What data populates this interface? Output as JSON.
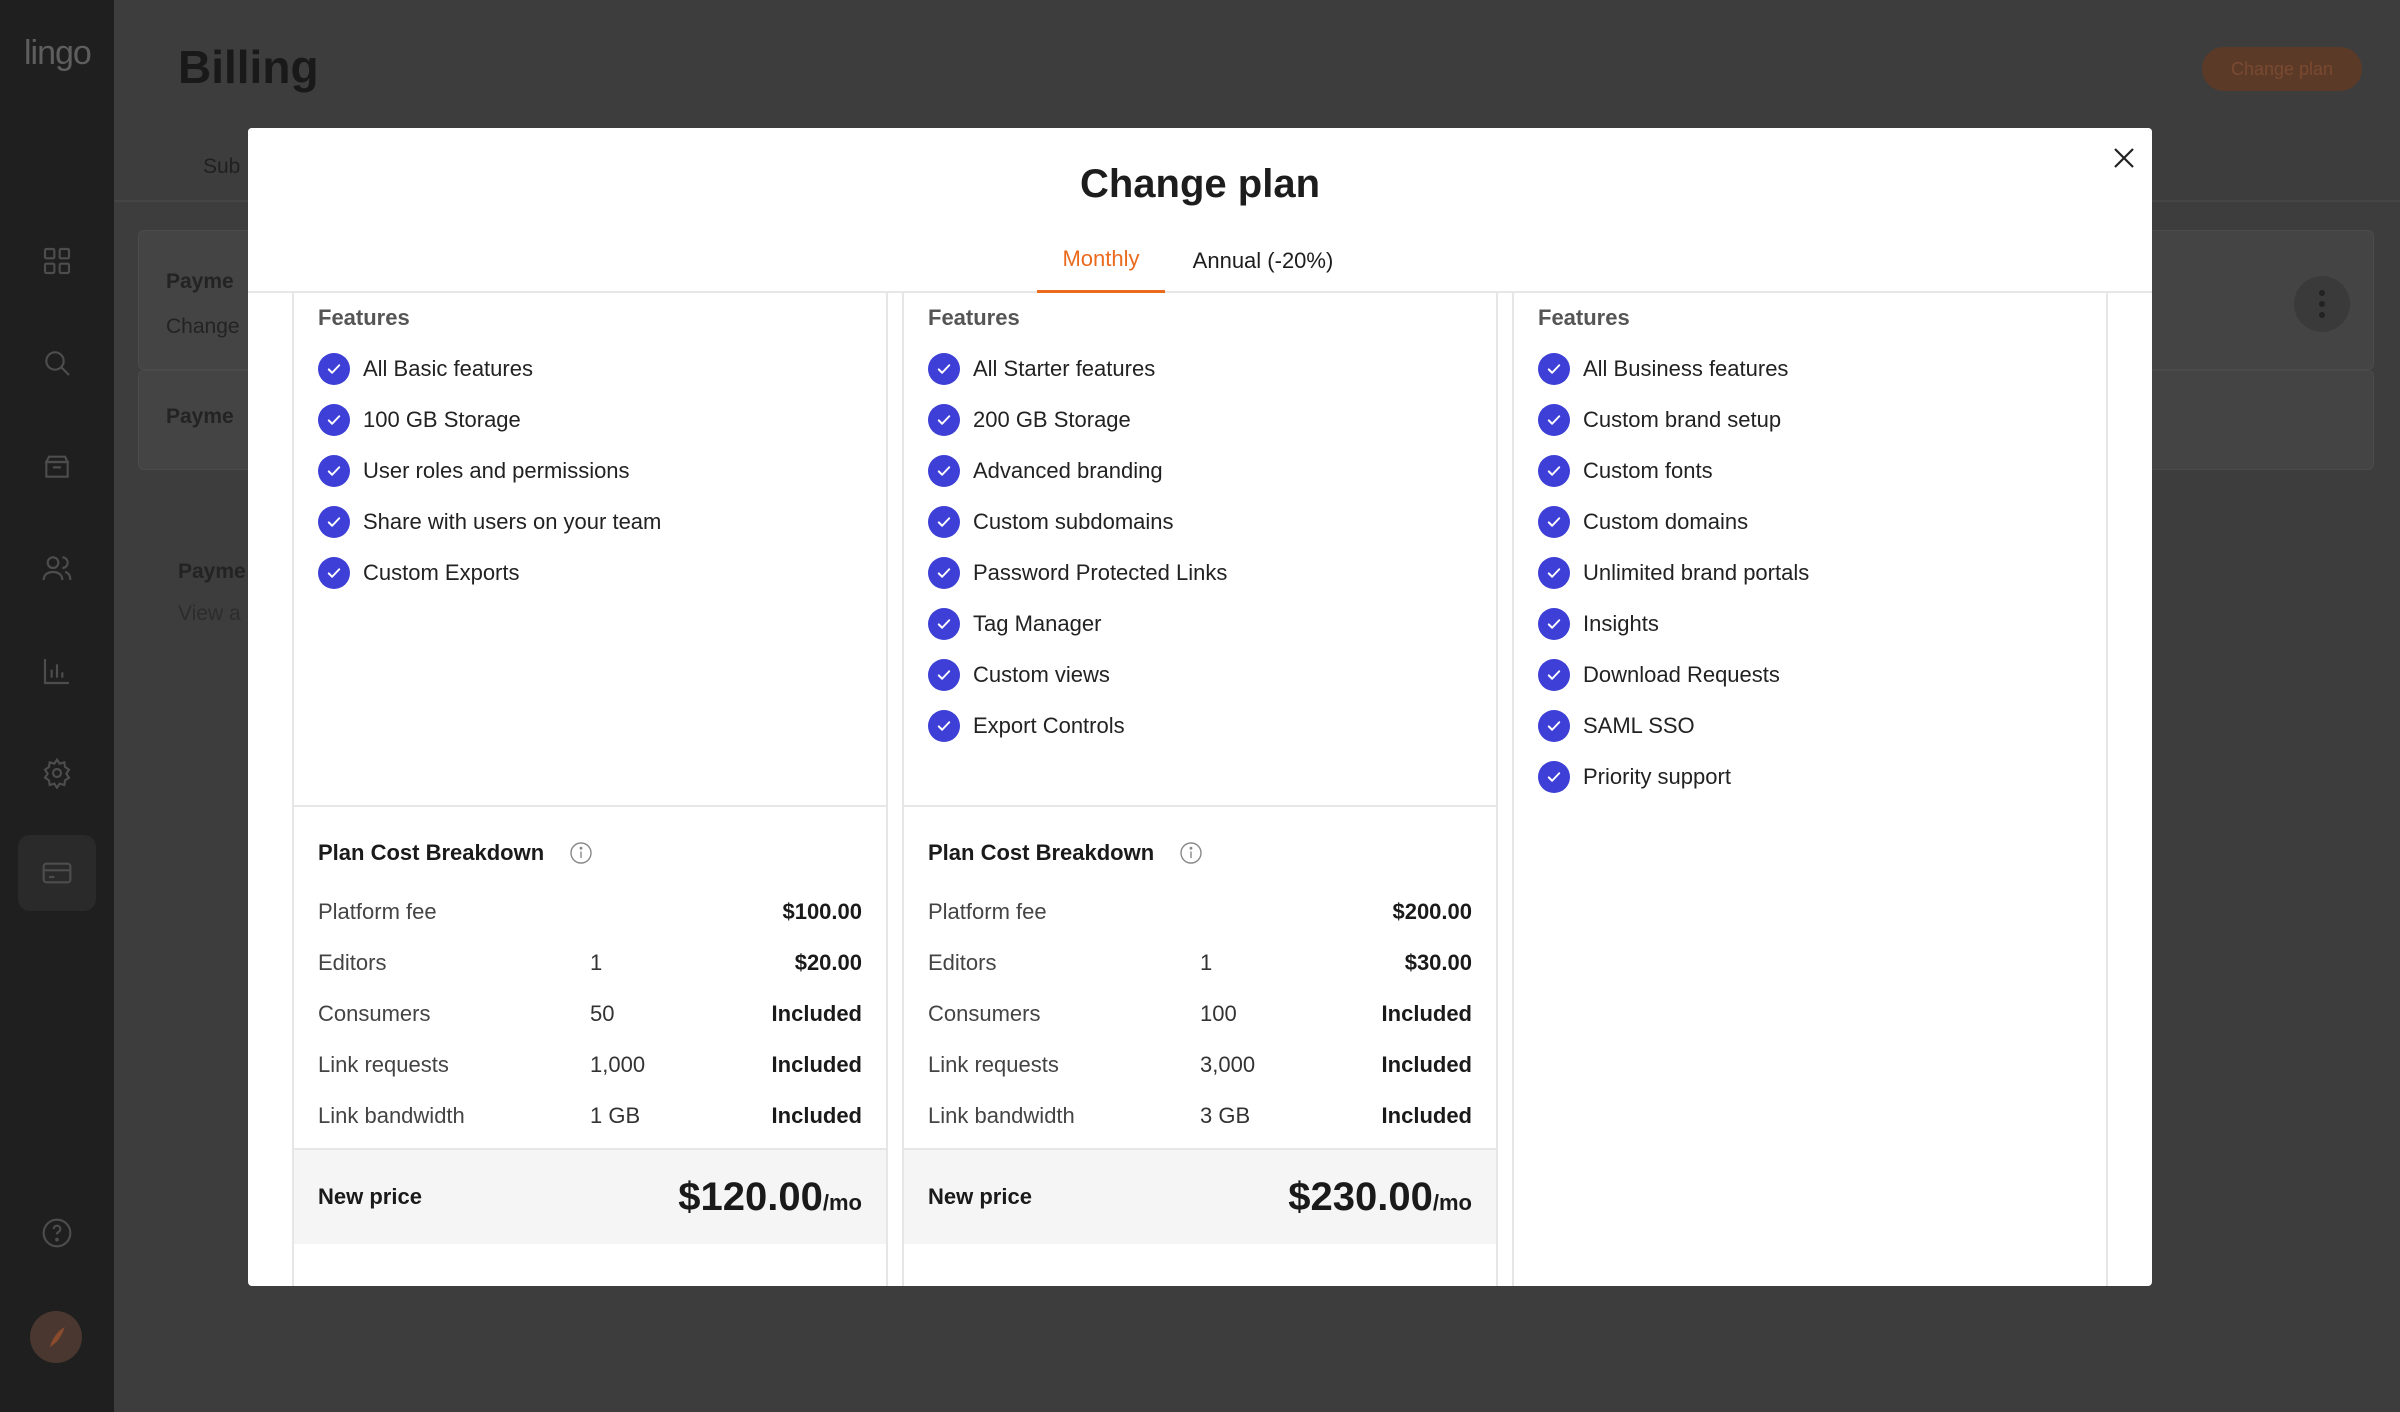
{
  "app": {
    "logo": "lingo"
  },
  "sidebar": {
    "items": [
      {
        "icon": "grid-icon"
      },
      {
        "icon": "search-icon"
      },
      {
        "icon": "archive-icon"
      },
      {
        "icon": "users-icon"
      },
      {
        "icon": "chart-icon"
      },
      {
        "icon": "gear-icon"
      },
      {
        "icon": "credit-card-icon",
        "active": true
      },
      {
        "icon": "help-icon"
      }
    ]
  },
  "background": {
    "title": "Billing",
    "change_plan_label": "Change plan",
    "tab_label": "Sub",
    "payment_heading_1": "Payme",
    "payment_sub_1": "Change",
    "payment_heading_2": "Payme",
    "payment_heading_3": "Payme",
    "payment_sub_3": "View a"
  },
  "modal": {
    "title": "Change plan",
    "tabs": [
      {
        "label": "Monthly",
        "active": true
      },
      {
        "label": "Annual (-20%)",
        "active": false
      }
    ],
    "accent_color": "#ea6a1e",
    "check_color": "#3d3fd6",
    "plans": [
      {
        "features_heading": "Features",
        "features": [
          "All Basic features",
          "100 GB Storage",
          "User roles and permissions",
          "Share with users on your team",
          "Custom Exports"
        ],
        "breakdown_title": "Plan Cost Breakdown",
        "costs": [
          {
            "label": "Platform fee",
            "qty": "",
            "value": "$100.00"
          },
          {
            "label": "Editors",
            "qty": "1",
            "value": "$20.00"
          },
          {
            "label": "Consumers",
            "qty": "50",
            "value": "Included"
          },
          {
            "label": "Link requests",
            "qty": "1,000",
            "value": "Included"
          },
          {
            "label": "Link bandwidth",
            "qty": "1 GB",
            "value": "Included"
          }
        ],
        "new_price_label": "New price",
        "new_price": "$120.00",
        "new_price_unit": "/mo"
      },
      {
        "features_heading": "Features",
        "features": [
          "All Starter features",
          "200 GB Storage",
          "Advanced branding",
          "Custom subdomains",
          "Password Protected Links",
          "Tag Manager",
          "Custom views",
          "Export Controls"
        ],
        "breakdown_title": "Plan Cost Breakdown",
        "costs": [
          {
            "label": "Platform fee",
            "qty": "",
            "value": "$200.00"
          },
          {
            "label": "Editors",
            "qty": "1",
            "value": "$30.00"
          },
          {
            "label": "Consumers",
            "qty": "100",
            "value": "Included"
          },
          {
            "label": "Link requests",
            "qty": "3,000",
            "value": "Included"
          },
          {
            "label": "Link bandwidth",
            "qty": "3 GB",
            "value": "Included"
          }
        ],
        "new_price_label": "New price",
        "new_price": "$230.00",
        "new_price_unit": "/mo"
      },
      {
        "features_heading": "Features",
        "features": [
          "All Business features",
          "Custom brand setup",
          "Custom fonts",
          "Custom domains",
          "Unlimited brand portals",
          "Insights",
          "Download Requests",
          "SAML SSO",
          "Priority support"
        ]
      }
    ]
  }
}
